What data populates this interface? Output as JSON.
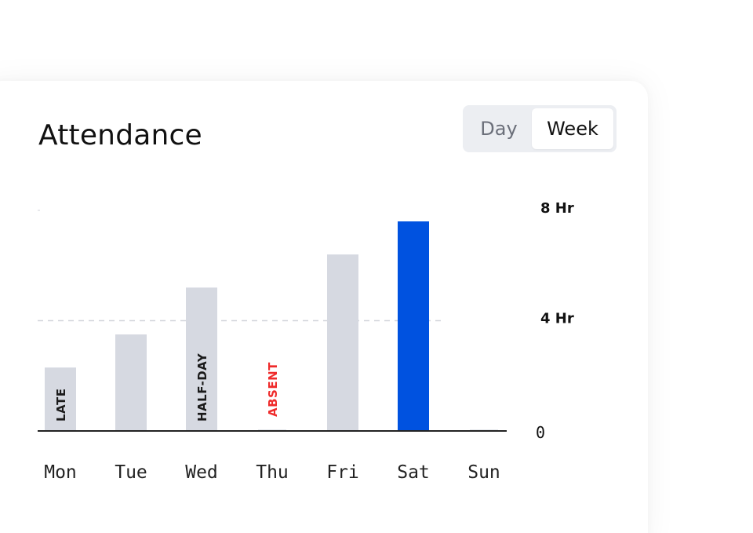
{
  "card": {
    "title": "Attendance"
  },
  "toggle": {
    "options": [
      "Day",
      "Week"
    ],
    "selected": "Week"
  },
  "chart_data": {
    "type": "bar",
    "categories": [
      "Mon",
      "Tue",
      "Wed",
      "Thu",
      "Fri",
      "Sat",
      "Sun"
    ],
    "values": [
      2.3,
      3.5,
      5.2,
      0,
      6.4,
      7.6,
      0
    ],
    "bar_labels": [
      "LATE",
      "",
      "HALF-DAY",
      "ABSENT",
      "",
      "",
      ""
    ],
    "highlight_index": 5,
    "y_ticks": [
      {
        "value": 8,
        "label": "8 Hr"
      },
      {
        "value": 4,
        "label": "4 Hr"
      },
      {
        "value": 0,
        "label": "0"
      }
    ],
    "ylim": [
      0,
      8
    ],
    "reference_line": 4,
    "colors": {
      "bar": "#d6d9e1",
      "highlight": "#0052e0",
      "absent_label": "#ef2b2b",
      "label": "#1a1a1a"
    }
  }
}
